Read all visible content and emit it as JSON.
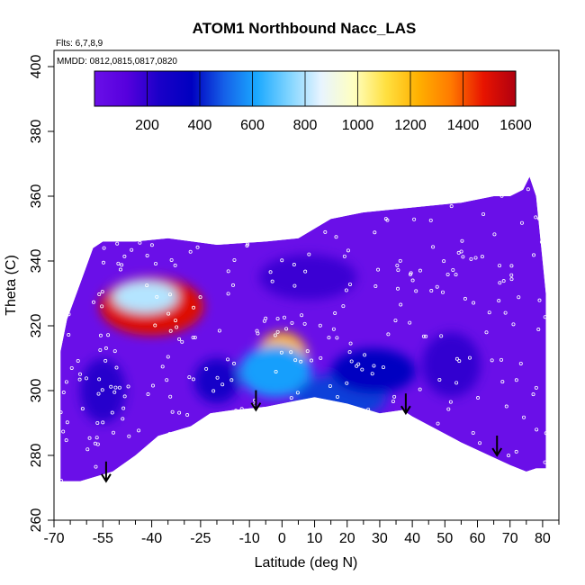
{
  "chart_data": {
    "type": "heatmap",
    "title": "ATOM1 Northbound Nacc_LAS",
    "xlabel": "Latitude (deg N)",
    "ylabel": "Theta (C)",
    "xlim": [
      -70,
      85
    ],
    "ylim": [
      260,
      405
    ],
    "x_ticks_major": [
      -70,
      -55,
      -40,
      -25,
      -10,
      0,
      10,
      20,
      30,
      40,
      50,
      60,
      70,
      80
    ],
    "x_ticks_minor": [
      -65,
      -60,
      -50,
      -45,
      -35,
      -30,
      -20,
      -15,
      -5,
      5,
      15,
      25,
      35,
      45,
      55,
      65,
      75,
      85
    ],
    "y_ticks": [
      260,
      280,
      300,
      320,
      340,
      360,
      380,
      400
    ],
    "annotations": {
      "flights": "Flts: 6,7,8,9",
      "dates": "MMDD: 0812,0815,0817,0820"
    },
    "colorbar": {
      "range": [
        0,
        1600
      ],
      "tick_values": [
        200,
        400,
        600,
        800,
        1000,
        1200,
        1400,
        1600
      ],
      "tick_labels": [
        "200",
        "400",
        "600",
        "800",
        "1000",
        "1200",
        "1400",
        "1600"
      ],
      "colors": [
        "#6a0fe8",
        "#5600dd",
        "#1a00c8",
        "#0000c0",
        "#1560e8",
        "#1aa8ff",
        "#7fd4ff",
        "#e8f4ff",
        "#ffffc0",
        "#ffe040",
        "#ffb000",
        "#ff7a00",
        "#e81400",
        "#b00010"
      ]
    },
    "data_envelope_upper": [
      [
        -68,
        312
      ],
      [
        -66,
        322
      ],
      [
        -62,
        333
      ],
      [
        -58,
        344
      ],
      [
        -55,
        346
      ],
      [
        -45,
        346
      ],
      [
        -35,
        347
      ],
      [
        -20,
        345
      ],
      [
        -5,
        346
      ],
      [
        5,
        347
      ],
      [
        15,
        353
      ],
      [
        25,
        355
      ],
      [
        35,
        356
      ],
      [
        45,
        357
      ],
      [
        55,
        358
      ],
      [
        65,
        360
      ],
      [
        70,
        360
      ],
      [
        74,
        362
      ],
      [
        76,
        366
      ],
      [
        78,
        360
      ],
      [
        79,
        350
      ],
      [
        80,
        340
      ],
      [
        81,
        330
      ]
    ],
    "data_envelope_lower": [
      [
        -68,
        272
      ],
      [
        -62,
        272
      ],
      [
        -52,
        275
      ],
      [
        -45,
        280
      ],
      [
        -38,
        286
      ],
      [
        -28,
        289
      ],
      [
        -22,
        293
      ],
      [
        -15,
        294
      ],
      [
        -5,
        295
      ],
      [
        5,
        297
      ],
      [
        10,
        298
      ],
      [
        20,
        296
      ],
      [
        30,
        293
      ],
      [
        37,
        294
      ],
      [
        40,
        292
      ],
      [
        55,
        284
      ],
      [
        70,
        277
      ],
      [
        75,
        275
      ],
      [
        78,
        276
      ],
      [
        81,
        276
      ],
      [
        81,
        300
      ],
      [
        81,
        330
      ]
    ],
    "enhancement_regions": [
      {
        "lat": -40,
        "theta": 326,
        "value": 1500,
        "width_deg": 32,
        "height_theta": 18
      },
      {
        "lat": -42,
        "theta": 329,
        "value": 800,
        "width_deg": 20,
        "height_theta": 10
      },
      {
        "lat": 0,
        "theta": 310,
        "value": 1200,
        "width_deg": 16,
        "height_theta": 16
      },
      {
        "lat": -2,
        "theta": 306,
        "value": 600,
        "width_deg": 22,
        "height_theta": 16
      },
      {
        "lat": 18,
        "theta": 298,
        "value": 450,
        "width_deg": 28,
        "height_theta": 14
      },
      {
        "lat": 28,
        "theta": 306,
        "value": 350,
        "width_deg": 26,
        "height_theta": 14
      },
      {
        "lat": -20,
        "theta": 303,
        "value": 250,
        "width_deg": 14,
        "height_theta": 14
      },
      {
        "lat": -55,
        "theta": 300,
        "value": 220,
        "width_deg": 14,
        "height_theta": 20
      },
      {
        "lat": 52,
        "theta": 308,
        "value": 200,
        "width_deg": 18,
        "height_theta": 20
      },
      {
        "lat": 8,
        "theta": 335,
        "value": 180,
        "width_deg": 30,
        "height_theta": 14
      }
    ],
    "arrows": [
      {
        "lat": -54,
        "theta": 272
      },
      {
        "lat": -8,
        "theta": 294
      },
      {
        "lat": 38,
        "theta": 293
      },
      {
        "lat": 66,
        "theta": 280
      }
    ],
    "legend": "colorbar top inside plot",
    "grid": false
  }
}
